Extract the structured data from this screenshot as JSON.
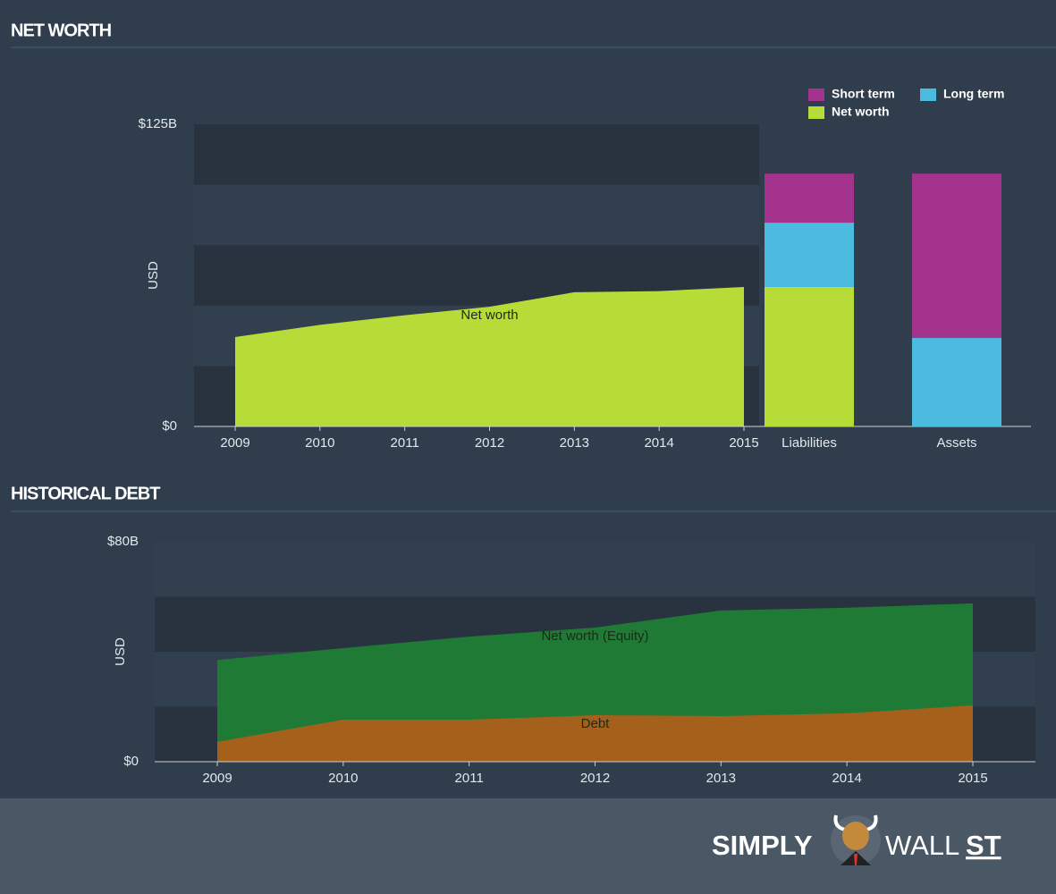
{
  "chart_data": [
    {
      "type": "area",
      "title": "NET WORTH",
      "ylabel": "USD",
      "x": [
        2009,
        2010,
        2011,
        2012,
        2013,
        2014,
        2015
      ],
      "xlim": [
        2009,
        2015
      ],
      "xticks": [
        2009,
        2010,
        2011,
        2012,
        2013,
        2014,
        2015
      ],
      "series": [
        {
          "name": "Net worth",
          "color": "#b8dc37",
          "values": [
            37,
            42,
            46,
            49.5,
            55.5,
            56,
            57.7
          ]
        }
      ],
      "ylim": [
        0,
        125
      ],
      "yticks": [
        {
          "value": 0,
          "label": "$0"
        },
        {
          "value": 125,
          "label": "$125B"
        }
      ]
    },
    {
      "type": "stacked_bar",
      "categories": [
        "Liabilities",
        "Assets"
      ],
      "ylim": [
        0,
        125
      ],
      "legend": "top-right",
      "series": [
        {
          "name": "Short term",
          "color": "#a3338d",
          "values": [
            20.3,
            68
          ]
        },
        {
          "name": "Long term",
          "color": "#4cbbe0",
          "values": [
            26.6,
            36.6
          ]
        },
        {
          "name": "Net worth",
          "color": "#b8dc37",
          "values": [
            57.7,
            null
          ]
        }
      ]
    },
    {
      "type": "area",
      "title": "HISTORICAL DEBT",
      "ylabel": "USD",
      "x": [
        2009,
        2010,
        2011,
        2012,
        2013,
        2014,
        2015
      ],
      "xlim": [
        2009,
        2015
      ],
      "xticks": [
        2009,
        2010,
        2011,
        2012,
        2013,
        2014,
        2015
      ],
      "series": [
        {
          "name": "Net worth (Equity)",
          "color": "#1f7a35",
          "values": [
            37,
            41.3,
            45.5,
            48.8,
            55,
            56,
            57.6
          ]
        },
        {
          "name": "Debt",
          "color": "#a5601b",
          "values": [
            7.2,
            15.3,
            15.3,
            16.9,
            16.6,
            17.6,
            20.5
          ]
        }
      ],
      "ylim": [
        0,
        80
      ],
      "yticks": [
        {
          "value": 0,
          "label": "$0"
        },
        {
          "value": 80,
          "label": "$80B"
        }
      ]
    }
  ],
  "logo": [
    "SIMPLY",
    "WALL",
    "ST"
  ]
}
